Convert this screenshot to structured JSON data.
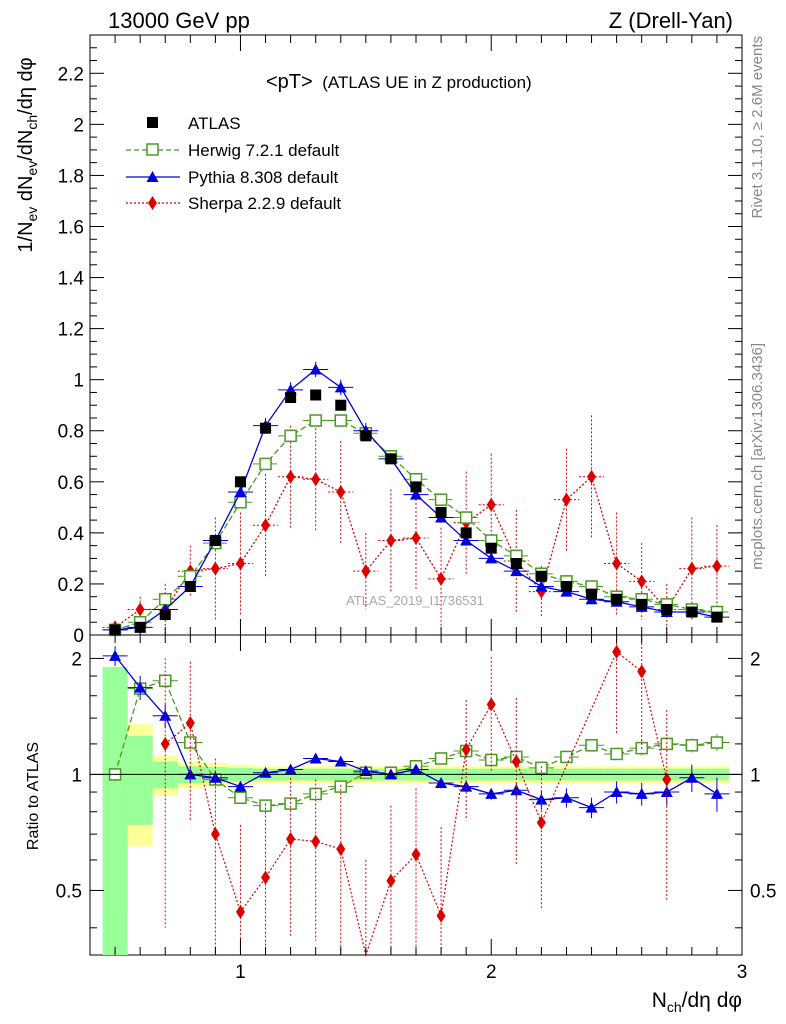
{
  "header": {
    "left": "13000 GeV pp",
    "right": "Z (Drell-Yan)"
  },
  "side": {
    "rivet": "Rivet 3.1.10, ≥ 2.6M events",
    "mcplots": "mcplots.cern.ch [arXiv:1306.3436]"
  },
  "watermark": "ATLAS_2019_I1736531",
  "chart_data": {
    "type": "scatter",
    "title": "<pT> (ATLAS UE in Z production)",
    "title_main": "<pT>",
    "title_sub": "(ATLAS UE in Z production)",
    "xlabel": "N_ch/dη dφ",
    "ylabel": "1/N_ev dN_ev/dN_ch/dη dφ",
    "ratio_ylabel": "Ratio to ATLAS",
    "xlim": [
      0.4,
      3.0
    ],
    "ylim": [
      0,
      2.35
    ],
    "ratio_ylim": [
      0.34,
      2.3
    ],
    "x_ticks": [
      "1",
      "2",
      "3"
    ],
    "y_ticks": [
      "0",
      "0.2",
      "0.4",
      "0.6",
      "0.8",
      "1",
      "1.2",
      "1.4",
      "1.6",
      "1.8",
      "2",
      "2.2"
    ],
    "ratio_ticks": [
      "0.5",
      "1",
      "2"
    ],
    "x": [
      0.5,
      0.6,
      0.7,
      0.8,
      0.9,
      1.0,
      1.1,
      1.2,
      1.3,
      1.4,
      1.5,
      1.6,
      1.7,
      1.8,
      1.9,
      2.0,
      2.1,
      2.2,
      2.3,
      2.4,
      2.5,
      2.6,
      2.7,
      2.8,
      2.9
    ],
    "series": [
      {
        "name": "ATLAS",
        "color": "#000000",
        "values": [
          0.02,
          0.03,
          0.08,
          0.19,
          0.37,
          0.6,
          0.81,
          0.93,
          0.94,
          0.9,
          0.78,
          0.69,
          0.58,
          0.48,
          0.4,
          0.34,
          0.28,
          0.23,
          0.19,
          0.16,
          0.14,
          0.12,
          0.1,
          0.09,
          0.07
        ]
      },
      {
        "name": "Herwig 7.2.1 default",
        "color": "#4a9a20",
        "values": [
          0.02,
          0.05,
          0.14,
          0.23,
          0.36,
          0.52,
          0.67,
          0.78,
          0.84,
          0.84,
          0.79,
          0.7,
          0.61,
          0.53,
          0.46,
          0.37,
          0.31,
          0.24,
          0.21,
          0.19,
          0.15,
          0.14,
          0.12,
          0.1,
          0.09
        ]
      },
      {
        "name": "Pythia 8.308 default",
        "color": "#0000dd",
        "values": [
          0.02,
          0.03,
          0.1,
          0.19,
          0.37,
          0.56,
          0.82,
          0.96,
          1.04,
          0.97,
          0.8,
          0.69,
          0.55,
          0.46,
          0.37,
          0.3,
          0.25,
          0.19,
          0.17,
          0.14,
          0.13,
          0.11,
          0.09,
          0.09,
          0.07
        ]
      },
      {
        "name": "Sherpa 2.2.9 default",
        "color": "#dd0000",
        "values": [
          0.03,
          0.1,
          0.1,
          0.25,
          0.26,
          0.28,
          0.43,
          0.62,
          0.61,
          0.56,
          0.25,
          0.37,
          0.38,
          0.22,
          0.44,
          0.51,
          0.29,
          0.17,
          0.53,
          0.62,
          0.28,
          0.21,
          0.1,
          0.26,
          0.27
        ]
      }
    ],
    "errors": {
      "Pythia 8.308 default": [
        0.005,
        0.008,
        0.01,
        0.015,
        0.02,
        0.02,
        0.03,
        0.03,
        0.03,
        0.03,
        0.03,
        0.02,
        0.02,
        0.02,
        0.02,
        0.015,
        0.015,
        0.01,
        0.01,
        0.01,
        0.01,
        0.01,
        0.008,
        0.008,
        0.008
      ],
      "Herwig 7.2.1 default": [
        0.005,
        0.008,
        0.01,
        0.012,
        0.015,
        0.015,
        0.015,
        0.015,
        0.015,
        0.015,
        0.015,
        0.015,
        0.015,
        0.015,
        0.015,
        0.012,
        0.012,
        0.01,
        0.01,
        0.01,
        0.01,
        0.01,
        0.008,
        0.008,
        0.008
      ],
      "Sherpa 2.2.9 default": [
        0.02,
        0.05,
        0.1,
        0.1,
        0.2,
        0.2,
        0.2,
        0.2,
        0.2,
        0.2,
        0.15,
        0.2,
        0.2,
        0.2,
        0.2,
        0.2,
        0.2,
        0.1,
        0.2,
        0.24,
        0.2,
        0.15,
        0.1,
        0.2,
        0.16
      ]
    },
    "ratio": {
      "Herwig 7.2.1 default": [
        1.0,
        1.67,
        1.75,
        1.21,
        0.97,
        0.87,
        0.83,
        0.84,
        0.89,
        0.93,
        1.01,
        1.01,
        1.05,
        1.1,
        1.15,
        1.09,
        1.11,
        1.04,
        1.11,
        1.19,
        1.13,
        1.17,
        1.2,
        1.19,
        1.21
      ],
      "Pythia 8.308 default": [
        2.03,
        1.68,
        1.42,
        1.0,
        0.98,
        0.93,
        1.01,
        1.03,
        1.1,
        1.08,
        1.02,
        1.0,
        1.03,
        0.95,
        0.93,
        0.89,
        0.91,
        0.86,
        0.87,
        0.82,
        0.9,
        0.89,
        0.9,
        0.98,
        0.89
      ]
    },
    "ratio_errors": {
      "Herwig 7.2.1 default": [
        0.04,
        0.06,
        0.06,
        0.04,
        0.03,
        0.02,
        0.02,
        0.02,
        0.02,
        0.02,
        0.02,
        0.02,
        0.02,
        0.03,
        0.03,
        0.03,
        0.03,
        0.03,
        0.04,
        0.04,
        0.04,
        0.05,
        0.05,
        0.05,
        0.06
      ],
      "Pythia 8.308 default": [
        0.12,
        0.12,
        0.1,
        0.05,
        0.04,
        0.03,
        0.02,
        0.02,
        0.02,
        0.02,
        0.02,
        0.02,
        0.03,
        0.03,
        0.03,
        0.03,
        0.04,
        0.05,
        0.05,
        0.05,
        0.06,
        0.06,
        0.07,
        0.08,
        0.09
      ]
    },
    "ratio_sherpa": {
      "x": [
        0.7,
        0.8,
        0.9,
        1.0,
        1.1,
        1.2,
        1.3,
        1.4,
        1.5,
        1.6,
        1.7,
        1.8,
        1.9,
        2.0,
        2.1,
        2.2,
        2.5,
        2.6,
        2.7
      ],
      "values": [
        1.2,
        1.36,
        0.7,
        0.44,
        0.54,
        0.68,
        0.67,
        0.64,
        0.3,
        0.53,
        0.62,
        0.43,
        1.16,
        1.52,
        1.08,
        0.75,
        2.08,
        1.85,
        0.97
      ],
      "errors": [
        0.8,
        0.6,
        0.4,
        0.3,
        0.3,
        0.3,
        0.3,
        0.3,
        0.3,
        0.3,
        0.3,
        0.3,
        0.4,
        0.5,
        0.5,
        0.3,
        0.8,
        0.7,
        0.5
      ]
    },
    "ratio_band_yellow": [
      0.55,
      0.35,
      0.12,
      0.08,
      0.07,
      0.06,
      0.05,
      0.05,
      0.05,
      0.05,
      0.05,
      0.05,
      0.05,
      0.05,
      0.05,
      0.05,
      0.05,
      0.05,
      0.05,
      0.05,
      0.05,
      0.05,
      0.05,
      0.05,
      0.05
    ],
    "ratio_band_green": [
      0.9,
      0.26,
      0.08,
      0.05,
      0.045,
      0.04,
      0.035,
      0.035,
      0.035,
      0.035,
      0.035,
      0.035,
      0.035,
      0.035,
      0.035,
      0.035,
      0.035,
      0.035,
      0.035,
      0.035,
      0.035,
      0.035,
      0.035,
      0.035,
      0.035
    ],
    "legend": [
      "ATLAS",
      "Herwig 7.2.1 default",
      "Pythia 8.308 default",
      "Sherpa 2.2.9 default"
    ],
    "legend_position": "top-left"
  }
}
